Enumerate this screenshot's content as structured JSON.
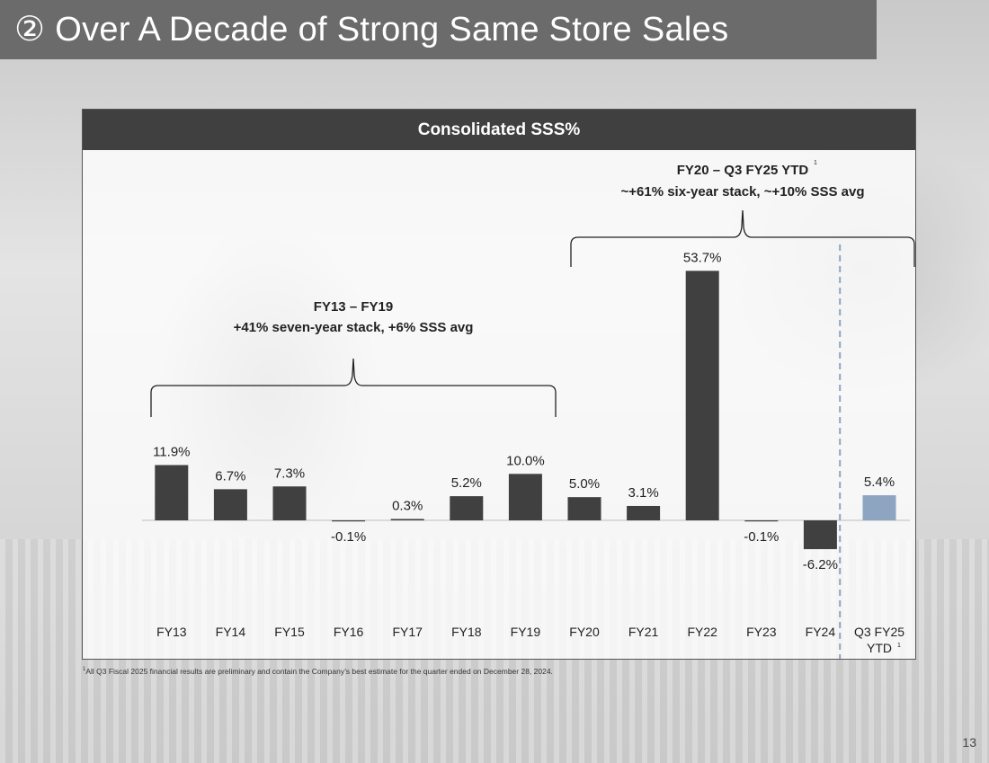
{
  "slide": {
    "title": "② Over A Decade of Strong Same Store Sales",
    "page_number": "13",
    "footnote_marker": "1",
    "footnote": "All Q3 Fiscal 2025 financial results are preliminary and contain the Company’s best estimate for the quarter ended on December 28, 2024."
  },
  "chart_data": {
    "type": "bar",
    "title": "Consolidated SSS%",
    "categories": [
      "FY13",
      "FY14",
      "FY15",
      "FY16",
      "FY17",
      "FY18",
      "FY19",
      "FY20",
      "FY21",
      "FY22",
      "FY23",
      "FY24",
      "Q3 FY25 YTD"
    ],
    "values": [
      11.9,
      6.7,
      7.3,
      -0.1,
      0.3,
      5.2,
      10.0,
      5.0,
      3.1,
      53.7,
      -0.1,
      -6.2,
      5.4
    ],
    "data_labels": [
      "11.9%",
      "6.7%",
      "7.3%",
      "-0.1%",
      "0.3%",
      "5.2%",
      "10.0%",
      "5.0%",
      "3.1%",
      "53.7%",
      "-0.1%",
      "-6.2%",
      "5.4%"
    ],
    "highlight_index": 12,
    "colors": {
      "bar": "#404040",
      "highlight": "#8ea5c2",
      "divider": "#8ea5c2"
    },
    "annotations": [
      {
        "line1": "FY13 – FY19",
        "line2": "+41% seven-year stack, +6% SSS avg",
        "from_index": 0,
        "to_index": 6
      },
      {
        "line1": "FY20 – Q3 FY25 YTD",
        "line1_sup": "1",
        "line2": "~+61% six-year stack, ~+10% SSS avg",
        "from_index": 7,
        "to_index": 12
      }
    ],
    "xlabel": "",
    "ylabel": ""
  }
}
